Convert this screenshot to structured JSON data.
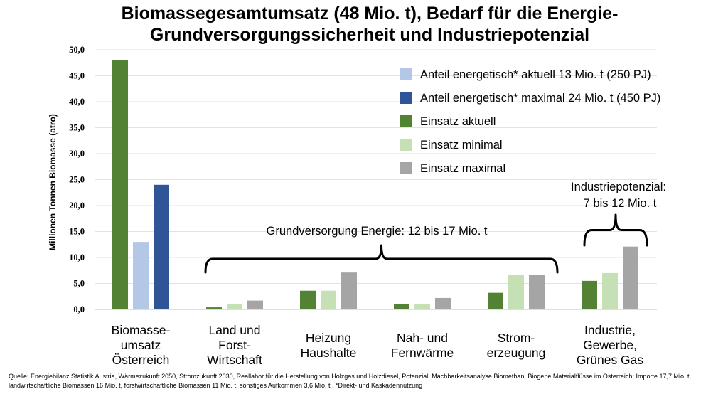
{
  "chart_data": {
    "type": "bar",
    "title": "Biomassegesamtumsatz (48 Mio. t), Bedarf für die Energie-Grundversorgungssicherheit und Industriepotenzial",
    "ylabel": "Millionen Tonnen Biomasse (atro)",
    "xlabel": "",
    "ylim": [
      0,
      50
    ],
    "yticks": [
      "0,0",
      "5,0",
      "10,0",
      "15,0",
      "20,0",
      "25,0",
      "30,0",
      "35,0",
      "40,0",
      "45,0",
      "50,0"
    ],
    "grid": true,
    "legend_position": "top-right",
    "categories": [
      [
        "Biomasse-",
        "umsatz",
        "Österreich"
      ],
      [
        "Land und",
        "Forst-",
        "Wirtschaft"
      ],
      [
        "Heizung",
        "Haushalte"
      ],
      [
        "Nah- und",
        "Fernwärme"
      ],
      [
        "Strom-",
        "erzeugung"
      ],
      [
        "Industrie,",
        "Gewerbe,",
        "Grünes Gas"
      ]
    ],
    "series": [
      {
        "name": "Anteil energetisch* aktuell 13 Mio. t (250 PJ)",
        "color": "#b4c7e7",
        "values": [
          13,
          null,
          null,
          null,
          null,
          null
        ]
      },
      {
        "name": "Anteil energetisch* maximal 24 Mio. t (450 PJ)",
        "color": "#2f5597",
        "values": [
          24,
          null,
          null,
          null,
          null,
          null
        ]
      },
      {
        "name": "Einsatz aktuell",
        "color": "#548235",
        "values": [
          48,
          0.4,
          3.6,
          1.0,
          3.2,
          5.5
        ]
      },
      {
        "name": "Einsatz minimal",
        "color": "#c5e0b4",
        "values": [
          null,
          1.1,
          3.6,
          1.0,
          6.6,
          7.0
        ]
      },
      {
        "name": "Einsatz maximal",
        "color": "#a5a5a5",
        "values": [
          null,
          1.7,
          7.1,
          2.2,
          6.6,
          12.1
        ]
      }
    ],
    "annotations": [
      {
        "text": "Grundversorgung Energie: 12 bis 17 Mio. t"
      },
      {
        "text": [
          "Industriepotenzial:",
          "7 bis 12 Mio. t"
        ]
      }
    ]
  },
  "source_note": "Quelle: Energiebilanz Statistik Austria, Wärmezukunft 2050, Stromzukunft 2030, Reallabor für die Herstellung von Holzgas und Holzdiesel, Potenzial: Machbarkeitsanalyse Biomethan, Biogene Materialflüsse im Österreich: Importe 17,7 Mio. t, landwirtschaftliche Biomassen 16 Mio. t, forstwirtschaftliche Biomassen 11 Mio. t, sonstiges Aufkommen 3,6 Mio. t , *Direkt- und Kaskadennutzung"
}
